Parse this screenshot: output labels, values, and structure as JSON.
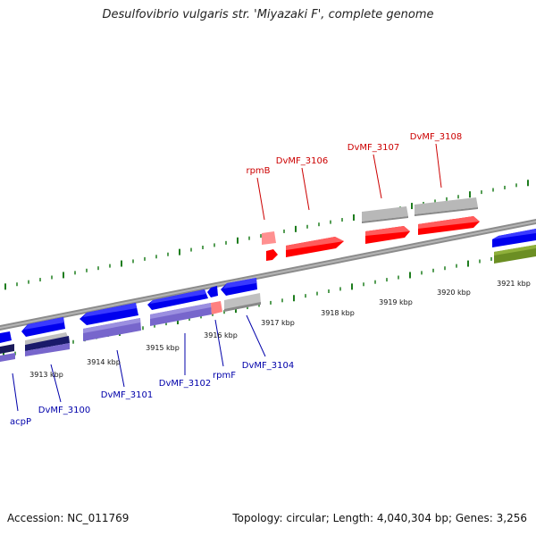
{
  "title": "Desulfovibrio vulgaris str. 'Miyazaki F', complete genome",
  "accession_text": "Accession: NC_011769",
  "meta_text": "Topology: circular; Length: 4,040,304 bp; Genes: 3,256",
  "colors": {
    "forward_gene": "#ff0000",
    "reverse_gene": "#0000ff",
    "forward_label": "#cc0000",
    "reverse_label": "#0000aa",
    "tick": "#1e7d1e",
    "backbone": "#888888",
    "rna": "#b0b0b0",
    "reverse_cds_band": "#7766cc",
    "special_band": "#6b8e23"
  },
  "ticks": [
    {
      "label": "3913 kbp"
    },
    {
      "label": "3914 kbp"
    },
    {
      "label": "3915 kbp"
    },
    {
      "label": "3916 kbp"
    },
    {
      "label": "3917 kbp"
    },
    {
      "label": "3918 kbp"
    },
    {
      "label": "3919 kbp"
    },
    {
      "label": "3920 kbp"
    },
    {
      "label": "3921 kbp"
    }
  ],
  "forward_genes": [
    {
      "name": "rpmB"
    },
    {
      "name": "DvMF_3106"
    },
    {
      "name": "DvMF_3107"
    },
    {
      "name": "DvMF_3108"
    }
  ],
  "reverse_genes": [
    {
      "name": "acpP"
    },
    {
      "name": "DvMF_3100"
    },
    {
      "name": "DvMF_3101"
    },
    {
      "name": "DvMF_3102"
    },
    {
      "name": "rpmF"
    },
    {
      "name": "DvMF_3104"
    }
  ]
}
